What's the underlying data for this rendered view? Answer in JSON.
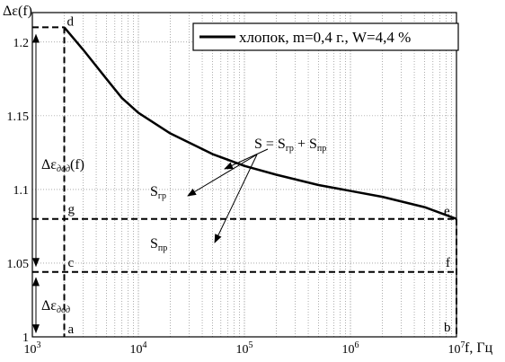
{
  "chart_data": {
    "type": "line",
    "ylabel": "Δε(f)",
    "xlabel": "f, Гц",
    "xscale": "log",
    "xlim": [
      1000,
      10000000
    ],
    "ylim": [
      1.0,
      1.22
    ],
    "x_major_ticks": [
      1000,
      10000,
      100000,
      1000000,
      10000000
    ],
    "y_ticks": [
      1,
      1.05,
      1.1,
      1.15,
      1.2
    ],
    "y_tick_labels": [
      "1",
      "1.05",
      "1.1",
      "1.15",
      "1.2"
    ],
    "grid": true,
    "legend": {
      "position": "top-right",
      "entries": [
        "хлопок, m=0,4 г., W=4,4 %"
      ]
    },
    "series": [
      {
        "name": "хлопок, m=0,4 г., W=4,4 %",
        "color": "#000000",
        "x": [
          2000,
          3000,
          5000,
          7000,
          10000,
          20000,
          50000,
          100000,
          200000,
          500000,
          1000000,
          2000000,
          5000000,
          10000000
        ],
        "y": [
          1.21,
          1.195,
          1.175,
          1.162,
          1.152,
          1.138,
          1.124,
          1.116,
          1.11,
          1.103,
          1.099,
          1.095,
          1.088,
          1.08
        ]
      }
    ],
    "dashed_lines": [
      {
        "from": [
          1000,
          1.21
        ],
        "to": [
          2000,
          1.21
        ]
      },
      {
        "from": [
          2000,
          1.21
        ],
        "to": [
          2000,
          1.0
        ]
      },
      {
        "from": [
          1000,
          1.08
        ],
        "to": [
          10000000,
          1.08
        ]
      },
      {
        "from": [
          1000,
          1.044
        ],
        "to": [
          10000000,
          1.044
        ]
      },
      {
        "from": [
          10000000,
          1.08
        ],
        "to": [
          10000000,
          1.0
        ]
      }
    ],
    "point_labels": [
      {
        "text": "d",
        "x": 2000,
        "y": 1.21
      },
      {
        "text": "e",
        "x": 10000000,
        "y": 1.08
      },
      {
        "text": "g",
        "x": 2000,
        "y": 1.08
      },
      {
        "text": "f",
        "x": 10000000,
        "y": 1.044
      },
      {
        "text": "c",
        "x": 2000,
        "y": 1.044
      },
      {
        "text": "a",
        "x": 2000,
        "y": 1.0
      },
      {
        "text": "b",
        "x": 10000000,
        "y": 1.0
      }
    ],
    "annotations": {
      "sum": "S = S",
      "sum_sub1": "гр",
      "sum_mid": " + S",
      "sum_sub2": "пр",
      "s_gr": "S",
      "s_gr_sub": "гр",
      "s_pr": "S",
      "s_pr_sub": "пр",
      "delta_upper": "Δε",
      "delta_upper_sub": "дод",
      "delta_upper_suffix": "(f)",
      "delta_lower": "Δε",
      "delta_lower_sub": "дод"
    }
  }
}
